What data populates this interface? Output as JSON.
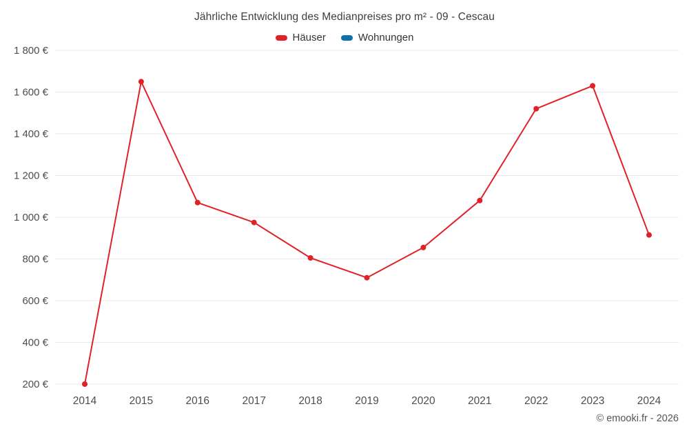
{
  "chart_data": {
    "type": "line",
    "title": "Jährliche Entwicklung des Medianpreises pro m² - 09 - Cescau",
    "categories": [
      "2014",
      "2015",
      "2016",
      "2017",
      "2018",
      "2019",
      "2020",
      "2021",
      "2022",
      "2023",
      "2024"
    ],
    "series": [
      {
        "name": "Häuser",
        "color": "#e02128",
        "values": [
          200,
          1650,
          1070,
          975,
          805,
          710,
          855,
          1080,
          1520,
          1630,
          915
        ]
      },
      {
        "name": "Wohnungen",
        "color": "#0e72a8",
        "values": []
      }
    ],
    "ylim": [
      200,
      1800
    ],
    "yticks": [
      200,
      400,
      600,
      800,
      1000,
      1200,
      1400,
      1600,
      1800
    ],
    "ytick_suffix": " €",
    "xlabel": "",
    "ylabel": "",
    "grid": "horizontal",
    "legend_position": "top"
  },
  "footer": {
    "copyright": "© emooki.fr - 2026"
  }
}
